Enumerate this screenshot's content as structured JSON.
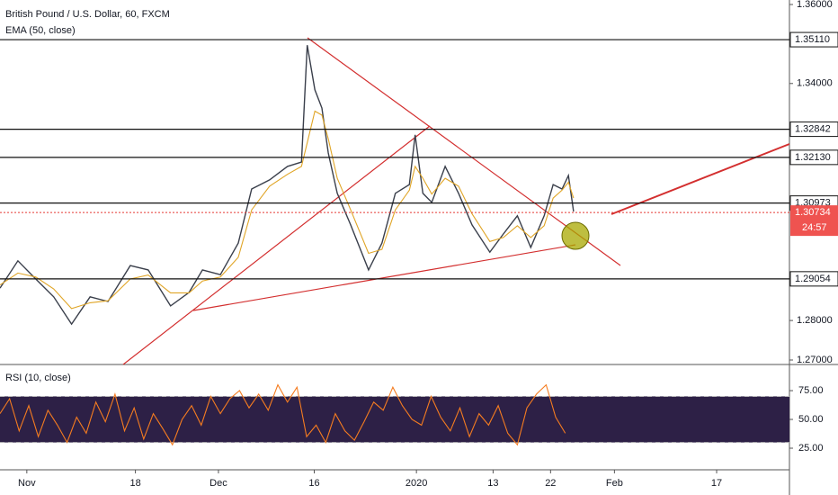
{
  "chart_data": [
    {
      "type": "line",
      "title": "British Pound / U.S. Dollar, 60, FXCM",
      "x": [
        -4.2,
        -1.4,
        1.4,
        4.2,
        7.0,
        9.9,
        12.7,
        16.2,
        19.0,
        22.5,
        25.4,
        27.5,
        30.3,
        33.1,
        35.2,
        38.0,
        40.8,
        43.0,
        43.9,
        45.1,
        46.2,
        47.2,
        48.6,
        50.7,
        53.5,
        55.6,
        57.7,
        59.9,
        60.8,
        62.0,
        63.4,
        65.5,
        67.6,
        69.7,
        72.5,
        74.6,
        76.8,
        78.9,
        81.0,
        82.4,
        83.8,
        84.8,
        85.6
      ],
      "series": [
        {
          "color": "#3a3f4b",
          "values": [
            1.2882,
            1.2951,
            1.2905,
            1.286,
            1.2791,
            1.286,
            1.2848,
            1.2939,
            1.2928,
            1.2837,
            1.2871,
            1.2928,
            1.2916,
            1.2996,
            1.3133,
            1.3156,
            1.319,
            1.3201,
            1.3497,
            1.3384,
            1.3338,
            1.3224,
            1.3122,
            1.3042,
            1.2928,
            1.2996,
            1.3122,
            1.3144,
            1.327,
            1.3122,
            1.3099,
            1.319,
            1.3122,
            1.3042,
            1.2973,
            1.3019,
            1.3065,
            1.2985,
            1.3065,
            1.3144,
            1.3133,
            1.3167,
            1.3076
          ]
        },
        {
          "name": "EMA (50, close)",
          "color": "#e0a526",
          "values": [
            1.289,
            1.292,
            1.291,
            1.288,
            1.283,
            1.2845,
            1.285,
            1.2905,
            1.2915,
            1.287,
            1.287,
            1.29,
            1.291,
            1.296,
            1.308,
            1.314,
            1.317,
            1.319,
            1.325,
            1.333,
            1.332,
            1.326,
            1.316,
            1.308,
            1.297,
            1.298,
            1.308,
            1.313,
            1.319,
            1.316,
            1.312,
            1.316,
            1.314,
            1.307,
            1.3,
            1.301,
            1.304,
            1.301,
            1.304,
            1.311,
            1.313,
            1.315,
            1.311
          ]
        }
      ],
      "xlim": [
        -4.2,
        119.4
      ],
      "xticks": [
        {
          "value": 0,
          "label": "Nov"
        },
        {
          "value": 17,
          "label": "18"
        },
        {
          "value": 30,
          "label": "Dec"
        },
        {
          "value": 45,
          "label": "16"
        },
        {
          "value": 61,
          "label": "2020"
        },
        {
          "value": 73,
          "label": "13"
        },
        {
          "value": 82,
          "label": "22"
        },
        {
          "value": 92,
          "label": "Feb"
        },
        {
          "value": 108,
          "label": "17"
        }
      ],
      "ylim": [
        1.26886,
        1.36114
      ],
      "yticks": [
        {
          "value": 1.36,
          "label": "1.36000"
        },
        {
          "value": 1.34,
          "label": "1.34000"
        },
        {
          "value": 1.28,
          "label": "1.28000"
        },
        {
          "value": 1.27,
          "label": "1.27000"
        }
      ],
      "levels": [
        {
          "value": 1.3511,
          "label": "1.35110"
        },
        {
          "value": 1.32842,
          "label": "1.32842"
        },
        {
          "value": 1.3213,
          "label": "1.32130"
        },
        {
          "value": 1.30973,
          "label": "1.30973"
        },
        {
          "value": 1.29054,
          "label": "1.29054"
        }
      ],
      "current_price": {
        "value": 1.30734,
        "label": "1.30734"
      },
      "countdown": "24:57"
    },
    {
      "type": "line",
      "x": [
        -4.2,
        -2.7,
        -1.2,
        0.3,
        1.8,
        3.3,
        4.8,
        6.3,
        7.8,
        9.3,
        10.8,
        12.3,
        13.8,
        15.3,
        16.8,
        18.3,
        19.8,
        21.3,
        22.8,
        24.3,
        25.8,
        27.3,
        28.8,
        30.3,
        31.8,
        33.3,
        34.8,
        36.3,
        37.8,
        39.3,
        40.8,
        42.3,
        43.8,
        45.3,
        46.8,
        48.3,
        49.8,
        51.3,
        52.8,
        54.3,
        55.8,
        57.3,
        58.8,
        60.3,
        61.8,
        63.3,
        64.8,
        66.3,
        67.8,
        69.3,
        70.8,
        72.3,
        73.8,
        75.3,
        76.8,
        78.3,
        79.8,
        81.3,
        82.8,
        84.3
      ],
      "series": [
        {
          "name": "RSI (10, close)",
          "color": "#f57c20",
          "values": [
            55,
            68,
            40,
            62,
            35,
            58,
            45,
            30,
            52,
            38,
            65,
            48,
            72,
            40,
            60,
            33,
            55,
            42,
            28,
            50,
            62,
            45,
            70,
            55,
            68,
            75,
            60,
            72,
            58,
            80,
            65,
            78,
            35,
            45,
            30,
            55,
            40,
            32,
            48,
            65,
            58,
            78,
            62,
            50,
            45,
            70,
            52,
            40,
            60,
            35,
            55,
            45,
            62,
            38,
            28,
            60,
            72,
            80,
            52,
            38
          ]
        }
      ],
      "xlim": [
        -4.2,
        119.4
      ],
      "ylim": [
        6.25,
        97.7
      ],
      "yticks": [
        {
          "value": 25,
          "label": "25.00"
        },
        {
          "value": 50,
          "label": "50.00"
        },
        {
          "value": 75,
          "label": "75.00"
        }
      ],
      "bands": [
        30,
        70
      ]
    }
  ]
}
